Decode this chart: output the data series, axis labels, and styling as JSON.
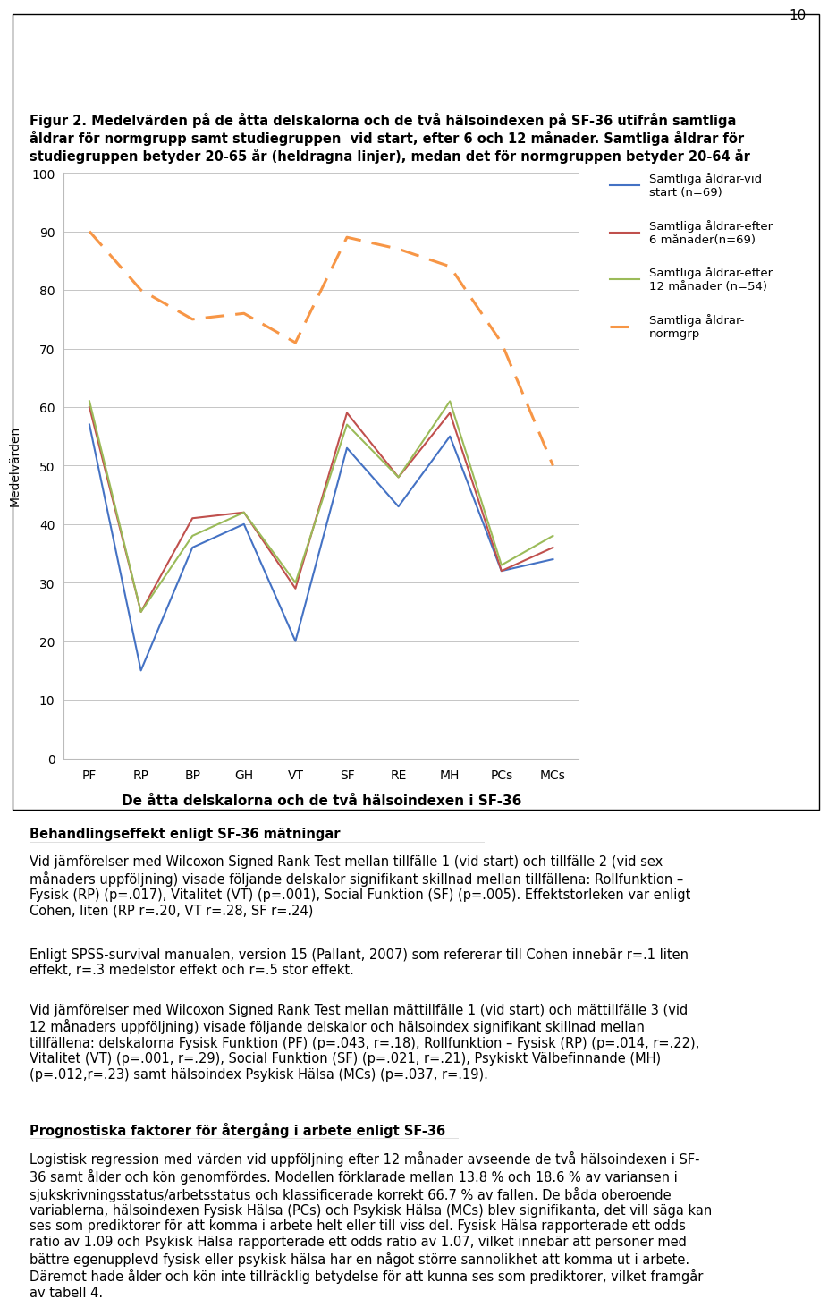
{
  "categories": [
    "PF",
    "RP",
    "BP",
    "GH",
    "VT",
    "SF",
    "RE",
    "MH",
    "PCs",
    "MCs"
  ],
  "vid_start": [
    57,
    15,
    36,
    40,
    20,
    53,
    43,
    55,
    32,
    34
  ],
  "efter_6": [
    60,
    25,
    41,
    42,
    29,
    59,
    48,
    59,
    32,
    36
  ],
  "efter_12": [
    61,
    25,
    38,
    42,
    30,
    57,
    48,
    61,
    33,
    38
  ],
  "normgrp": [
    90,
    80,
    75,
    76,
    71,
    89,
    87,
    84,
    71,
    50
  ],
  "color_blue": "#4472C4",
  "color_red": "#C0504D",
  "color_green": "#9BBB59",
  "color_orange": "#F79646",
  "ylabel": "Medelvärden",
  "xlabel": "De åtta delskalorna och de två hälsoindexen i SF-36",
  "ylim": [
    0,
    100
  ],
  "yticks": [
    0,
    10,
    20,
    30,
    40,
    50,
    60,
    70,
    80,
    90,
    100
  ],
  "legend_labels": [
    "Samtliga åldrar-vid\nstart (n=69)",
    "Samtliga åldrar-efter\n6 månader(n=69)",
    "Samtliga åldrar-efter\n12 månader (n=54)",
    "Samtliga åldrar-\nnormgrp"
  ],
  "figure_title": "Figur 2. Medelvärden på de åtta delskalorna och de två hälsoindexen på SF-36 utifrån samtliga\nåldrar för normgrupp samt studiegruppen  vid start, efter 6 och 12 månader. Samtliga åldrar för\nstudiegruppen betyder 20-65 år (heldragna linjer), medan det för normgruppen betyder 20-64 år",
  "page_number": "10",
  "section1_title": "Behandlingseffekt enligt SF-36 mätningar",
  "section1_body1": "Vid jämförelser med Wilcoxon Signed Rank Test mellan tillfälle 1 (vid start) och tillfälle 2 (vid sex\nmånaders uppföljning) visade följande delskalor signifikant skillnad mellan tillfällena: Rollfunktion –\nFysisk (RP) (p=.017), Vitalitet (VT) (p=.001), Social Funktion (SF) (p=.005). Effektstorleken var enligt\nCohen, liten (RP r=.20, VT r=.28, SF r=.24)",
  "section1_body2": "Enligt SPSS-survival manualen, version 15 (Pallant, 2007) som refererar till Cohen innebär r=.1 liten\neffekt, r=.3 medelstor effekt och r=.5 stor effekt.",
  "section1_body3": "Vid jämförelser med Wilcoxon Signed Rank Test mellan mättillfälle 1 (vid start) och mättillfälle 3 (vid\n12 månaders uppföljning) visade följande delskalor och hälsoindex signifikant skillnad mellan\ntillfällena: delskalorna Fysisk Funktion (PF) (p=.043, r=.18), Rollfunktion – Fysisk (RP) (p=.014, r=.22),\nVitalitet (VT) (p=.001, r=.29), Social Funktion (SF) (p=.021, r=.21), Psykiskt Välbefinnande (MH)\n(p=.012,r=.23) samt hälsoindex Psykisk Hälsa (MCs) (p=.037, r=.19).",
  "section2_title": "Prognostiska faktorer för återgång i arbete enligt SF-36",
  "section2_body": "Logistisk regression med värden vid uppföljning efter 12 månader avseende de två hälsoindexen i SF-\n36 samt ålder och kön genomfördes. Modellen förklarade mellan 13.8 % och 18.6 % av variansen i\nsjukskrivningsstatus/arbetsstatus och klassificerade korrekt 66.7 % av fallen. De båda oberoende\nvariablerna, hälsoindexen Fysisk Hälsa (PCs) och Psykisk Hälsa (MCs) blev signifikanta, det vill säga kan\nses som prediktorer för att komma i arbete helt eller till viss del. Fysisk Hälsa rapporterade ett odds\nratio av 1.09 och Psykisk Hälsa rapporterade ett odds ratio av 1.07, vilket innebär att personer med\nbättre egenupplevd fysisk eller psykisk hälsa har en något större sannolikhet att komma ut i arbete.\nDäremot hade ålder och kön inte tillräcklig betydelse för att kunna ses som prediktorer, vilket framgår\nav tabell 4.",
  "background_color": "#FFFFFF"
}
